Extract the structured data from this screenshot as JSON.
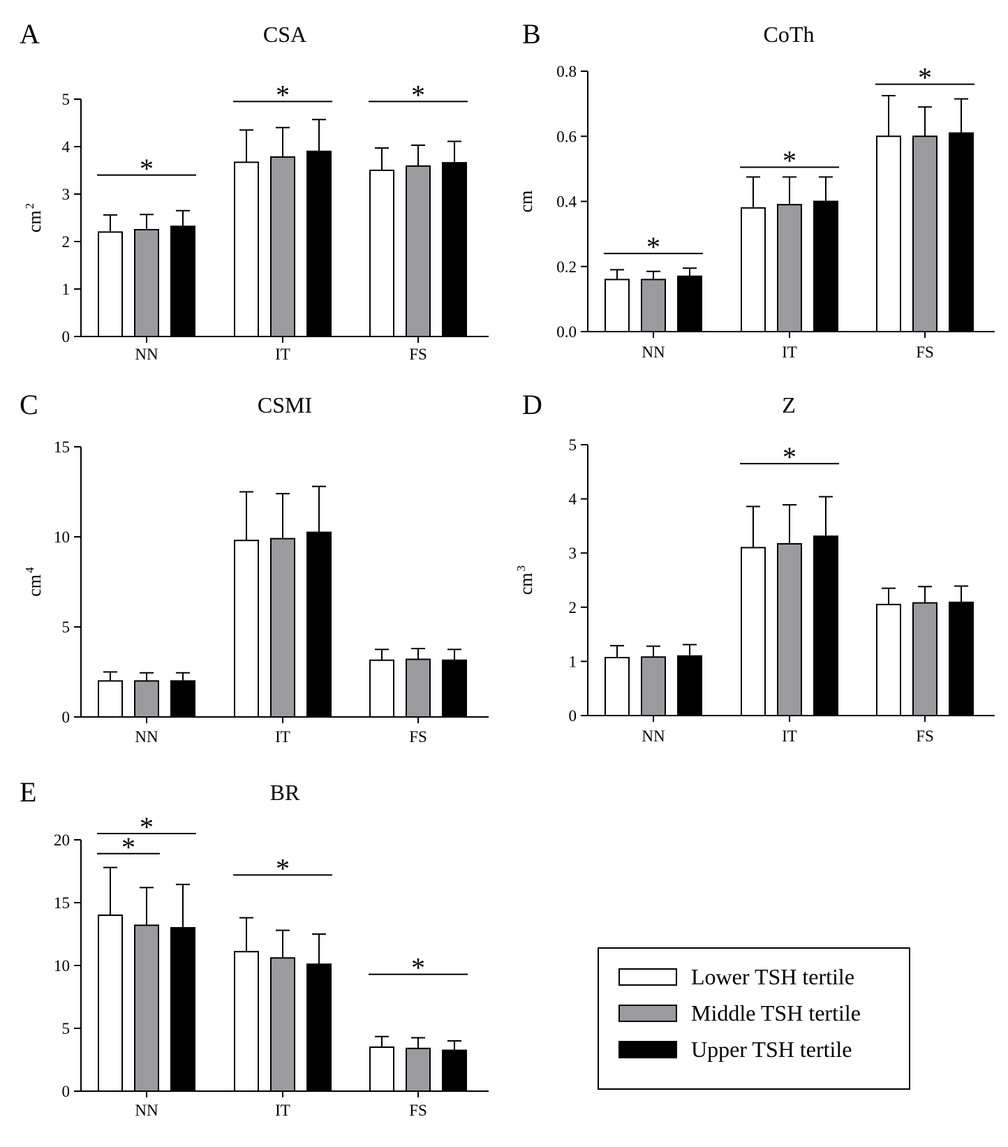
{
  "legend": {
    "items": [
      {
        "label": "Lower TSH tertile",
        "color": "#ffffff"
      },
      {
        "label": "Middle TSH tertile",
        "color": "#9b9b9f"
      },
      {
        "label": "Upper TSH tertile",
        "color": "#000000"
      }
    ]
  },
  "chart_data": [
    {
      "panel": "A",
      "type": "bar",
      "title": "CSA",
      "ylabel": "cm",
      "ylabel_sup": "2",
      "categories": [
        "NN",
        "IT",
        "FS"
      ],
      "ylim": [
        0,
        5
      ],
      "yticks": [
        "0",
        "1",
        "2",
        "3",
        "4",
        "5"
      ],
      "series": [
        {
          "name": "Lower TSH tertile",
          "values": [
            2.2,
            3.67,
            3.5
          ],
          "errors": [
            0.36,
            0.68,
            0.47
          ]
        },
        {
          "name": "Middle TSH tertile",
          "values": [
            2.25,
            3.78,
            3.59
          ],
          "errors": [
            0.32,
            0.62,
            0.44
          ]
        },
        {
          "name": "Upper TSH tertile",
          "values": [
            2.32,
            3.9,
            3.66
          ],
          "errors": [
            0.33,
            0.67,
            0.45
          ]
        }
      ],
      "significance": [
        {
          "category": "NN",
          "label": "*",
          "level": 3.4
        },
        {
          "category": "IT",
          "label": "*",
          "level": 4.95
        },
        {
          "category": "FS",
          "label": "*",
          "level": 4.95
        }
      ]
    },
    {
      "panel": "B",
      "type": "bar",
      "title": "CoTh",
      "ylabel": "cm",
      "ylabel_sup": "",
      "categories": [
        "NN",
        "IT",
        "FS"
      ],
      "ylim": [
        0,
        0.8
      ],
      "yticks": [
        "0.0",
        "0.2",
        "0.4",
        "0.6",
        "0.8"
      ],
      "series": [
        {
          "name": "Lower TSH tertile",
          "values": [
            0.16,
            0.38,
            0.6
          ],
          "errors": [
            0.03,
            0.095,
            0.125
          ]
        },
        {
          "name": "Middle TSH tertile",
          "values": [
            0.16,
            0.39,
            0.6
          ],
          "errors": [
            0.025,
            0.085,
            0.09
          ]
        },
        {
          "name": "Upper TSH tertile",
          "values": [
            0.17,
            0.4,
            0.61
          ],
          "errors": [
            0.025,
            0.075,
            0.105
          ]
        }
      ],
      "significance": [
        {
          "category": "NN",
          "label": "*",
          "level": 0.24
        },
        {
          "category": "IT",
          "label": "*",
          "level": 0.505
        },
        {
          "category": "FS",
          "label": "*",
          "level": 0.76
        }
      ]
    },
    {
      "panel": "C",
      "type": "bar",
      "title": "CSMI",
      "ylabel": "cm",
      "ylabel_sup": "4",
      "categories": [
        "NN",
        "IT",
        "FS"
      ],
      "ylim": [
        0,
        15
      ],
      "yticks": [
        "0",
        "5",
        "10",
        "15"
      ],
      "series": [
        {
          "name": "Lower TSH tertile",
          "values": [
            2.0,
            9.8,
            3.15
          ],
          "errors": [
            0.5,
            2.7,
            0.6
          ]
        },
        {
          "name": "Middle TSH tertile",
          "values": [
            2.0,
            9.9,
            3.2
          ],
          "errors": [
            0.45,
            2.5,
            0.6
          ]
        },
        {
          "name": "Upper TSH tertile",
          "values": [
            2.0,
            10.25,
            3.15
          ],
          "errors": [
            0.45,
            2.55,
            0.6
          ]
        }
      ],
      "significance": []
    },
    {
      "panel": "D",
      "type": "bar",
      "title": "Z",
      "ylabel": "cm",
      "ylabel_sup": "3",
      "categories": [
        "NN",
        "IT",
        "FS"
      ],
      "ylim": [
        0,
        5
      ],
      "yticks": [
        "0",
        "1",
        "2",
        "3",
        "4",
        "5"
      ],
      "series": [
        {
          "name": "Lower TSH tertile",
          "values": [
            1.07,
            3.1,
            2.05
          ],
          "errors": [
            0.22,
            0.76,
            0.3
          ]
        },
        {
          "name": "Middle TSH tertile",
          "values": [
            1.08,
            3.17,
            2.08
          ],
          "errors": [
            0.2,
            0.72,
            0.3
          ]
        },
        {
          "name": "Upper TSH tertile",
          "values": [
            1.1,
            3.31,
            2.09
          ],
          "errors": [
            0.21,
            0.73,
            0.3
          ]
        }
      ],
      "significance": [
        {
          "category": "IT",
          "label": "*",
          "level": 4.65
        }
      ]
    },
    {
      "panel": "E",
      "type": "bar",
      "title": "BR",
      "ylabel": "",
      "ylabel_sup": "",
      "categories": [
        "NN",
        "IT",
        "FS"
      ],
      "ylim": [
        0,
        20
      ],
      "yticks": [
        "0",
        "5",
        "10",
        "15",
        "20"
      ],
      "series": [
        {
          "name": "Lower TSH tertile",
          "values": [
            14.0,
            11.1,
            3.5
          ],
          "errors": [
            3.8,
            2.7,
            0.85
          ]
        },
        {
          "name": "Middle TSH tertile",
          "values": [
            13.2,
            10.6,
            3.4
          ],
          "errors": [
            3.0,
            2.2,
            0.85
          ]
        },
        {
          "name": "Upper TSH tertile",
          "values": [
            13.0,
            10.1,
            3.25
          ],
          "errors": [
            3.45,
            2.4,
            0.75
          ]
        }
      ],
      "significance": [
        {
          "category": "NN",
          "label": "*",
          "level": 18.9,
          "from": 0,
          "to": 1
        },
        {
          "category": "NN",
          "label": "*",
          "level": 20.5,
          "from": 0,
          "to": 2
        },
        {
          "category": "IT",
          "label": "*",
          "level": 17.2
        },
        {
          "category": "FS",
          "label": "*",
          "level": 9.3
        }
      ]
    }
  ]
}
